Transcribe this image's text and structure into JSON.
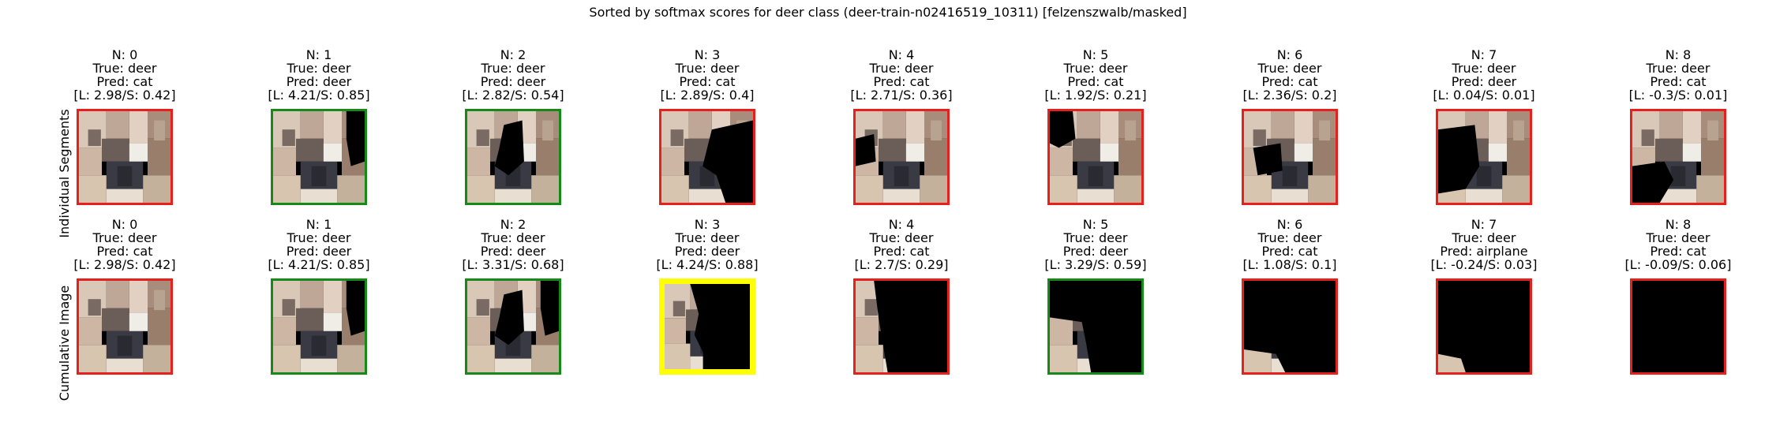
{
  "figure": {
    "title": "Sorted by softmax scores for deer class (deer-train-n02416519_10311) [felzenszwalb/masked]"
  },
  "rows": [
    {
      "label": "Individual Segments",
      "panels": [
        {
          "n": "N: 0",
          "true": "True: deer",
          "pred": "Pred: cat",
          "score": "[L: 2.98/S: 0.42]",
          "border": "red",
          "mask": "none"
        },
        {
          "n": "N: 1",
          "true": "True: deer",
          "pred": "Pred: deer",
          "score": "[L: 4.21/S: 0.85]",
          "border": "green",
          "mask": "right-upper"
        },
        {
          "n": "N: 2",
          "true": "True: deer",
          "pred": "Pred: deer",
          "score": "[L: 2.82/S: 0.54]",
          "border": "green",
          "mask": "center-blob"
        },
        {
          "n": "N: 3",
          "true": "True: deer",
          "pred": "Pred: cat",
          "score": "[L: 2.89/S: 0.4]",
          "border": "red",
          "mask": "right-half"
        },
        {
          "n": "N: 4",
          "true": "True: deer",
          "pred": "Pred: cat",
          "score": "[L: 2.71/S: 0.36]",
          "border": "red",
          "mask": "left-small"
        },
        {
          "n": "N: 5",
          "true": "True: deer",
          "pred": "Pred: cat",
          "score": "[L: 1.92/S: 0.21]",
          "border": "red",
          "mask": "top-left"
        },
        {
          "n": "N: 6",
          "true": "True: deer",
          "pred": "Pred: cat",
          "score": "[L: 2.36/S: 0.2]",
          "border": "red",
          "mask": "mid-left"
        },
        {
          "n": "N: 7",
          "true": "True: deer",
          "pred": "Pred: deer",
          "score": "[L: 0.04/S: 0.01]",
          "border": "red",
          "mask": "left-large"
        },
        {
          "n": "N: 8",
          "true": "True: deer",
          "pred": "Pred: cat",
          "score": "[L: -0.3/S: 0.01]",
          "border": "red",
          "mask": "bottom-left"
        }
      ]
    },
    {
      "label": "Cumulative Image",
      "panels": [
        {
          "n": "N: 0",
          "true": "True: deer",
          "pred": "Pred: cat",
          "score": "[L: 2.98/S: 0.42]",
          "border": "red",
          "mask": "none"
        },
        {
          "n": "N: 1",
          "true": "True: deer",
          "pred": "Pred: deer",
          "score": "[L: 4.21/S: 0.85]",
          "border": "green",
          "mask": "right-upper"
        },
        {
          "n": "N: 2",
          "true": "True: deer",
          "pred": "Pred: deer",
          "score": "[L: 3.31/S: 0.68]",
          "border": "green",
          "mask": "cum-2"
        },
        {
          "n": "N: 3",
          "true": "True: deer",
          "pred": "Pred: deer",
          "score": "[L: 4.24/S: 0.88]",
          "border": "yellow",
          "mask": "cum-3"
        },
        {
          "n": "N: 4",
          "true": "True: deer",
          "pred": "Pred: cat",
          "score": "[L: 2.7/S: 0.29]",
          "border": "red",
          "mask": "cum-4"
        },
        {
          "n": "N: 5",
          "true": "True: deer",
          "pred": "Pred: deer",
          "score": "[L: 3.29/S: 0.59]",
          "border": "green",
          "mask": "cum-5"
        },
        {
          "n": "N: 6",
          "true": "True: deer",
          "pred": "Pred: cat",
          "score": "[L: 1.08/S: 0.1]",
          "border": "red",
          "mask": "cum-6"
        },
        {
          "n": "N: 7",
          "true": "True: deer",
          "pred": "Pred: airplane",
          "score": "[L: -0.24/S: 0.03]",
          "border": "red",
          "mask": "cum-7"
        },
        {
          "n": "N: 8",
          "true": "True: deer",
          "pred": "Pred: cat",
          "score": "[L: -0.09/S: 0.06]",
          "border": "red",
          "mask": "all"
        }
      ]
    }
  ],
  "colors": {
    "red": "#e8201c",
    "green": "#168a16",
    "yellow": "#ffff00"
  }
}
